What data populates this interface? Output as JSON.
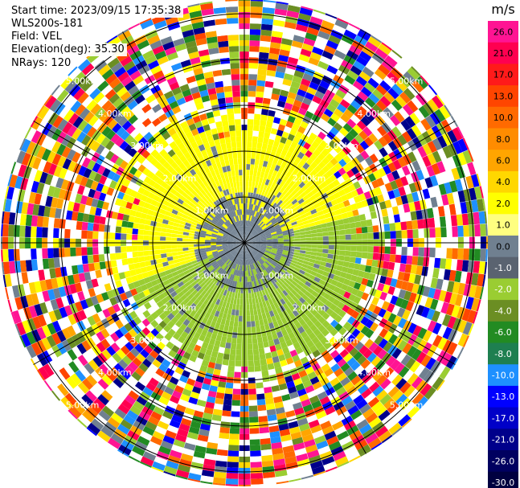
{
  "info": {
    "start_time": "Start time: 2023/09/15 17:35:38",
    "instrument": "WLS200s-181",
    "field": "Field: VEL",
    "elevation": "Elevation(deg): 35.30",
    "nrays": "NRays: 120"
  },
  "chart_data": {
    "type": "heatmap",
    "projection": "polar",
    "title": "",
    "nrays": 120,
    "range_rings_km": [
      1,
      2,
      3,
      4,
      5
    ],
    "range_labels": [
      "1.00km",
      "2.00km",
      "3.00km",
      "4.00km",
      "5.00km"
    ],
    "spokes_deg": [
      0,
      30,
      60,
      90,
      120,
      150,
      180,
      210,
      240,
      270,
      300,
      330
    ],
    "velocity_regions": [
      {
        "label": "near-range, north/west sector",
        "approx_value_ms": 2.0,
        "color": "#ffff00"
      },
      {
        "label": "near-range, south/east sector",
        "approx_value_ms": -2.0,
        "color": "#9acd32"
      },
      {
        "label": "near-range, center strip",
        "approx_value_ms": 0.0,
        "color": "#708090"
      },
      {
        "label": "far-range",
        "approx_value_ms": "noise (all values)",
        "color": "mixed"
      }
    ],
    "colorbar": {
      "unit": "m/s",
      "labels": [
        "26.0",
        "21.0",
        "17.0",
        "13.0",
        "10.0",
        "8.0",
        "6.0",
        "4.0",
        "2.0",
        "1.0",
        "0.0",
        "-1.0",
        "-2.0",
        "-4.0",
        "-6.0",
        "-8.0",
        "-10.0",
        "-13.0",
        "-17.0",
        "-21.0",
        "-26.0",
        "-30.0"
      ],
      "colors": [
        "#ff1493",
        "#ff0050",
        "#ff1a1a",
        "#ff4500",
        "#ff6a00",
        "#ff8c00",
        "#ffa500",
        "#ffd700",
        "#ffff00",
        "#ffff80",
        "#708090",
        "#5a6370",
        "#9acd32",
        "#6b8e23",
        "#228b22",
        "#1e7f50",
        "#1e90ff",
        "#0000ff",
        "#0000c8",
        "#00008b",
        "#000060",
        "#000040"
      ]
    }
  }
}
